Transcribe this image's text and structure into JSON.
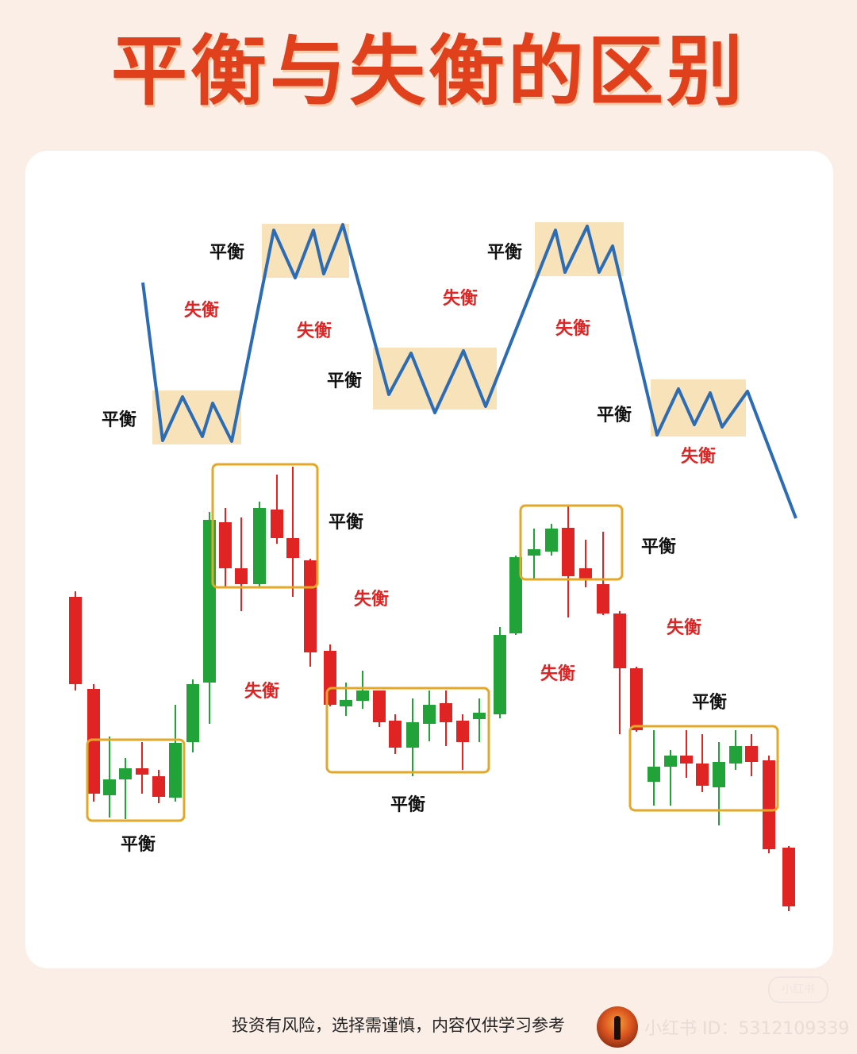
{
  "title": "平衡与失衡的区别",
  "labels": {
    "balance": "平衡",
    "imbalance": "失衡"
  },
  "colors": {
    "title": "#e0401c",
    "line": "#2b6cb4",
    "zone_fill": "#f8e2ba",
    "bull": "#22a33a",
    "bear": "#e02424",
    "box": "#e3a82a",
    "imbalance_text": "#e02424",
    "balance_text": "#111111"
  },
  "footer": {
    "disclaimer": "投资有风险，选择需谨慎，内容仅供学习参考",
    "watermark": "小红书 ID：5312109339",
    "badge": "小红书"
  }
}
